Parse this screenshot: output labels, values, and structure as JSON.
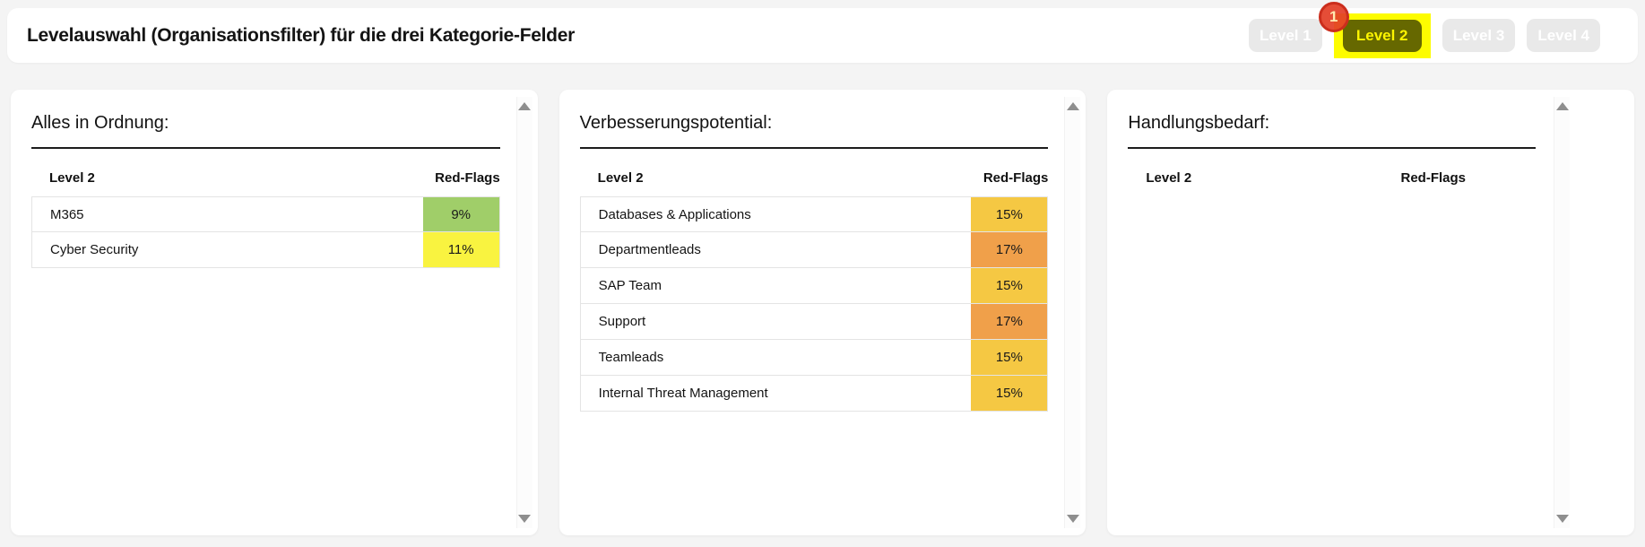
{
  "header": {
    "title": "Levelauswahl (Organisationsfilter) für die drei Kategorie-Felder",
    "badge": "1",
    "buttons": [
      {
        "label": "Level 1",
        "active": false
      },
      {
        "label": "Level 2",
        "active": true
      },
      {
        "label": "Level 3",
        "active": false
      },
      {
        "label": "Level 4",
        "active": false
      }
    ]
  },
  "colors": {
    "green": "#a0ce69",
    "yellow": "#f9f340",
    "amber": "#f5c843",
    "orange": "#f0a04a",
    "active_button_bg": "#666800",
    "active_button_text": "#fdf400",
    "highlight": "#fdfc00",
    "badge_red": "#e33e26"
  },
  "panels": [
    {
      "title": "Alles in Ordnung:",
      "columns": [
        "Level 2",
        "Red-Flags"
      ],
      "rows": [
        {
          "label": "M365",
          "value": "9%",
          "color": "green"
        },
        {
          "label": "Cyber Security",
          "value": "11%",
          "color": "yellow"
        }
      ]
    },
    {
      "title": "Verbesserungspotential:",
      "columns": [
        "Level 2",
        "Red-Flags"
      ],
      "rows": [
        {
          "label": "Databases & Applications",
          "value": "15%",
          "color": "amber"
        },
        {
          "label": "Departmentleads",
          "value": "17%",
          "color": "orange"
        },
        {
          "label": "SAP Team",
          "value": "15%",
          "color": "amber"
        },
        {
          "label": "Support",
          "value": "17%",
          "color": "orange"
        },
        {
          "label": "Teamleads",
          "value": "15%",
          "color": "amber"
        },
        {
          "label": "Internal Threat Management",
          "value": "15%",
          "color": "amber"
        }
      ]
    },
    {
      "title": "Handlungsbedarf:",
      "columns": [
        "Level 2",
        "Red-Flags"
      ],
      "rows": []
    }
  ]
}
